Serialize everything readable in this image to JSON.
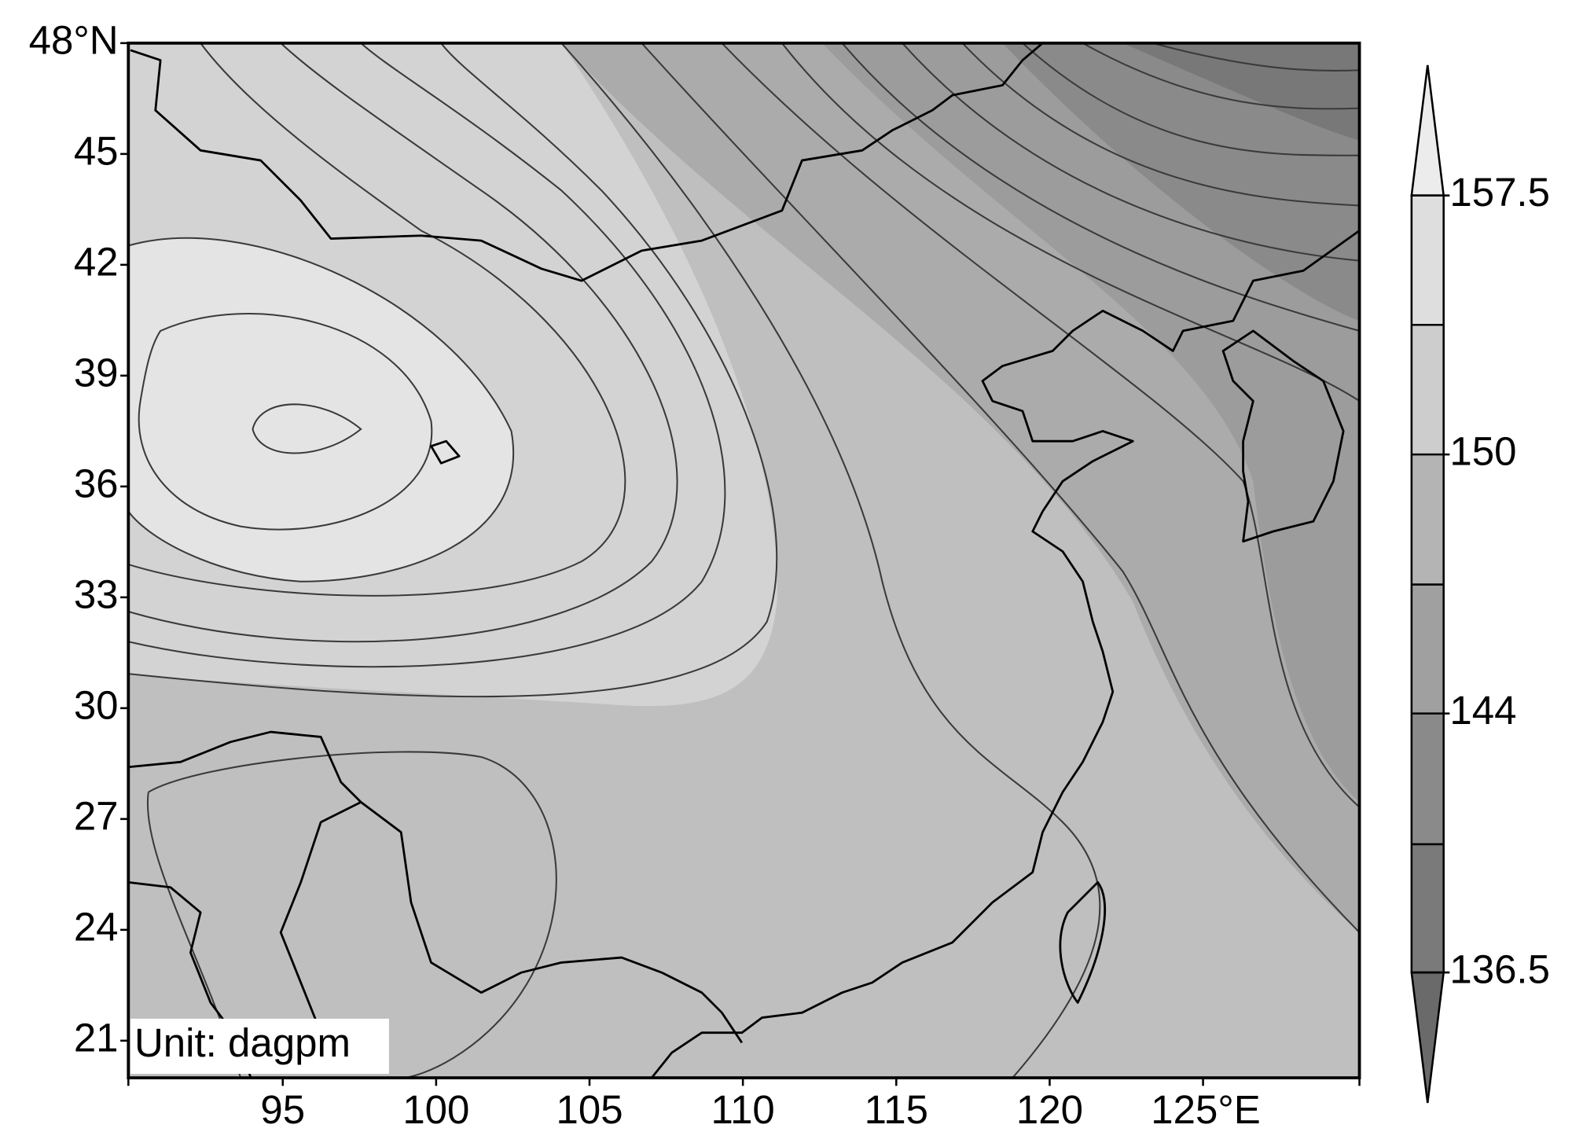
{
  "map": {
    "y_axis_labels": [
      "48°N",
      "45",
      "42",
      "39",
      "36",
      "33",
      "30",
      "27",
      "24",
      "21"
    ],
    "x_axis_labels": [
      "95",
      "100",
      "105",
      "110",
      "115",
      "120",
      "125°E"
    ],
    "colorbar_labels": [
      "157.5",
      "150",
      "144",
      "136.5"
    ],
    "unit_label": "Unit: dagpm"
  }
}
